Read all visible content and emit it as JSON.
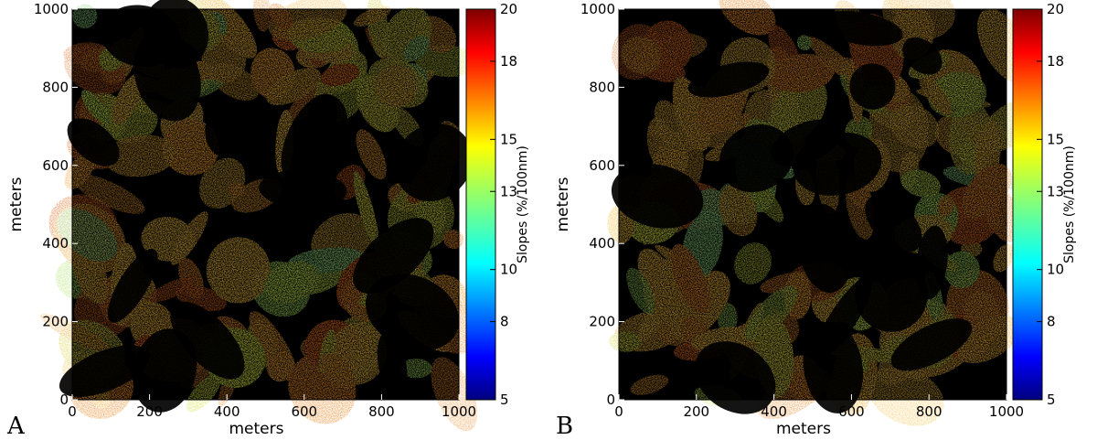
{
  "chart_data": [
    {
      "type": "heatmap",
      "panel": "A",
      "xlabel": "meters",
      "ylabel": "meters",
      "xlim": [
        0,
        1000
      ],
      "ylim": [
        0,
        1000
      ],
      "xticks": [
        0,
        200,
        400,
        600,
        800,
        1000
      ],
      "yticks": [
        0,
        200,
        400,
        600,
        800,
        1000
      ],
      "colorbar": {
        "label": "Slopes (%/100nm)",
        "range": [
          5,
          20
        ],
        "ticks": [
          5,
          8,
          10,
          13,
          15,
          18,
          20
        ],
        "colormap": "jet"
      },
      "background_color": "#000000"
    },
    {
      "type": "heatmap",
      "panel": "B",
      "xlabel": "meters",
      "ylabel": "meters",
      "xlim": [
        0,
        1000
      ],
      "ylim": [
        0,
        1000
      ],
      "xticks": [
        0,
        200,
        400,
        600,
        800,
        1000
      ],
      "yticks": [
        0,
        200,
        400,
        600,
        800,
        1000
      ],
      "colorbar": {
        "label": "Slopes (%/100nm)",
        "range": [
          5,
          20
        ],
        "ticks": [
          5,
          8,
          10,
          13,
          15,
          18,
          20
        ],
        "colormap": "jet"
      },
      "background_color": "#000000"
    }
  ]
}
